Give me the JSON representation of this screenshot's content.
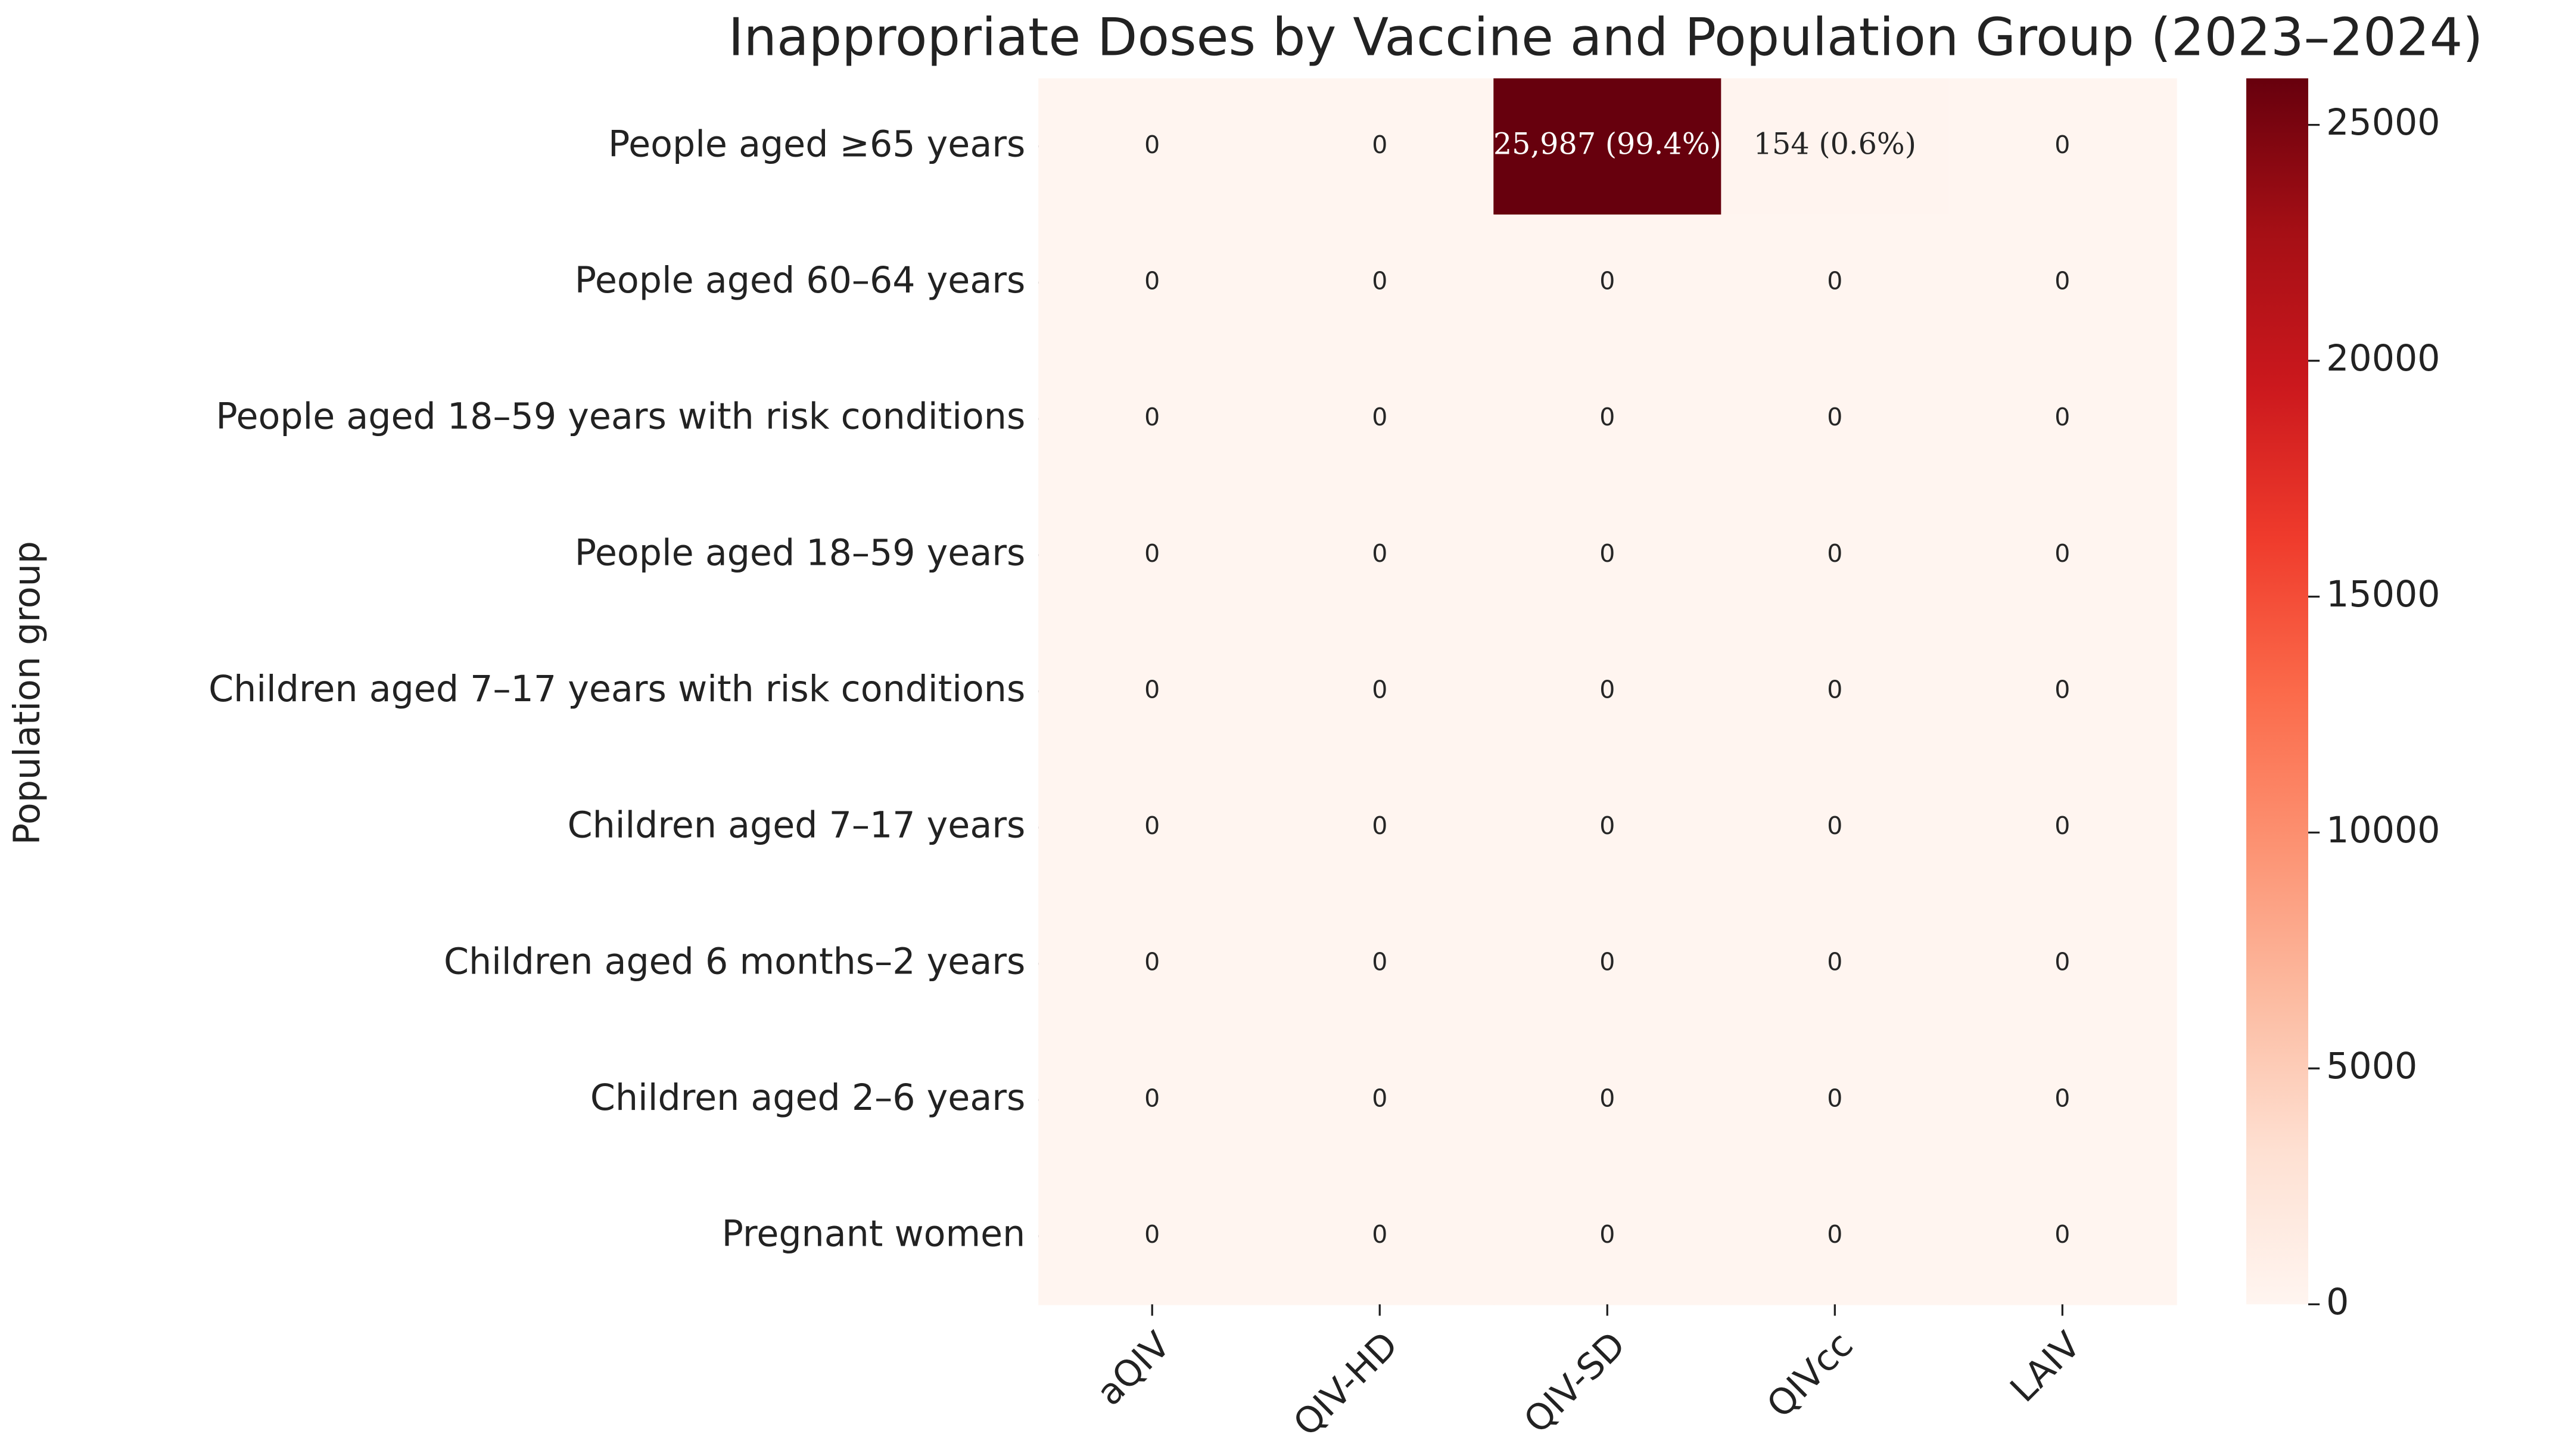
{
  "chart_data": {
    "type": "heatmap",
    "title": "Inappropriate Doses by Vaccine and Population Group (2023–2024)",
    "ylabel": "Population group",
    "categories": [
      "aQIV",
      "QIV-HD",
      "QIV-SD",
      "QIVcc",
      "LAIV"
    ],
    "rows": [
      "People aged ≥65 years",
      "People aged 60–64 years",
      "People aged 18–59 years with risk conditions",
      "People aged 18–59 years",
      "Children aged 7–17 years with risk conditions",
      "Children aged 7–17 years",
      "Children aged 6 months–2 years",
      "Children aged 2–6 years",
      "Pregnant women"
    ],
    "values": [
      [
        0,
        0,
        25987,
        154,
        0
      ],
      [
        0,
        0,
        0,
        0,
        0
      ],
      [
        0,
        0,
        0,
        0,
        0
      ],
      [
        0,
        0,
        0,
        0,
        0
      ],
      [
        0,
        0,
        0,
        0,
        0
      ],
      [
        0,
        0,
        0,
        0,
        0
      ],
      [
        0,
        0,
        0,
        0,
        0
      ],
      [
        0,
        0,
        0,
        0,
        0
      ],
      [
        0,
        0,
        0,
        0,
        0
      ]
    ],
    "value_labels": [
      [
        "0",
        "0",
        "25,987 (99.4%)",
        "154 (0.6%)",
        "0"
      ],
      [
        "0",
        "0",
        "0",
        "0",
        "0"
      ],
      [
        "0",
        "0",
        "0",
        "0",
        "0"
      ],
      [
        "0",
        "0",
        "0",
        "0",
        "0"
      ],
      [
        "0",
        "0",
        "0",
        "0",
        "0"
      ],
      [
        "0",
        "0",
        "0",
        "0",
        "0"
      ],
      [
        "0",
        "0",
        "0",
        "0",
        "0"
      ],
      [
        "0",
        "0",
        "0",
        "0",
        "0"
      ],
      [
        "0",
        "0",
        "0",
        "0",
        "0"
      ]
    ],
    "colorscale": [
      "#fff5f0",
      "#fee0d2",
      "#fcbba1",
      "#fc9272",
      "#fb6a4a",
      "#ef3b2c",
      "#cb181d",
      "#a50f15",
      "#67000d"
    ],
    "zlim": [
      0,
      25987
    ],
    "zticks": [
      0,
      5000,
      10000,
      15000,
      20000,
      25000
    ]
  }
}
